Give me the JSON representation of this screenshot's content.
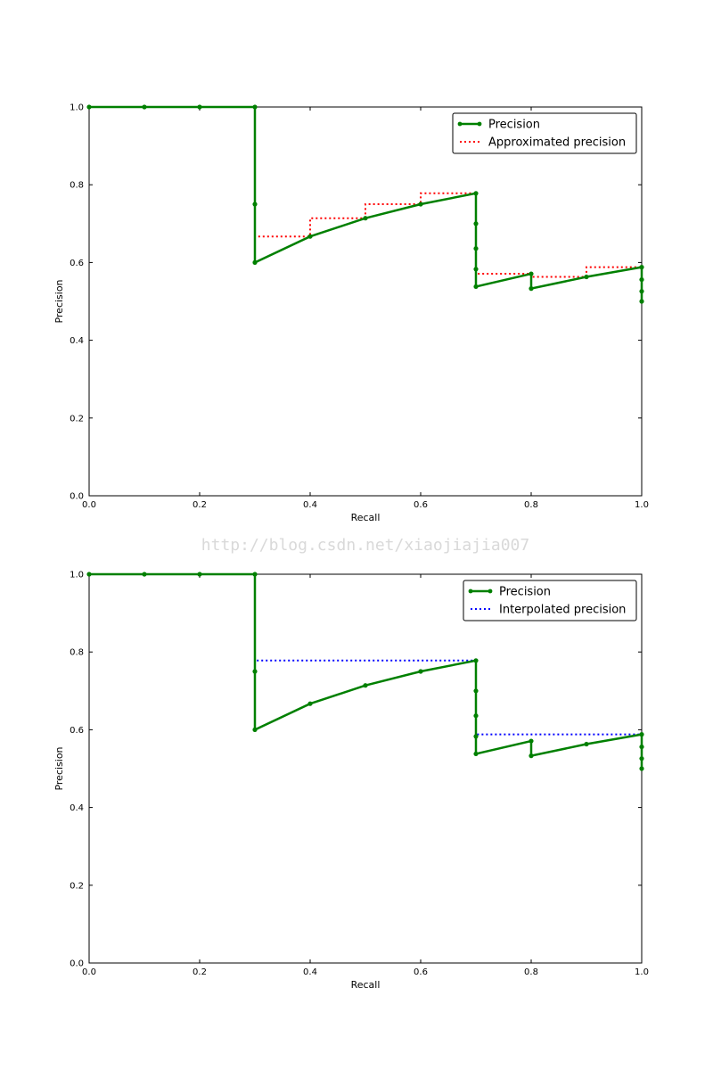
{
  "watermark": "http://blog.csdn.net/xiaojiajia007",
  "colors": {
    "precision": "#008000",
    "approximated": "#ff0000",
    "interpolated": "#0000ff",
    "watermark": "#d9d9d9"
  },
  "chart_data": [
    {
      "type": "line",
      "title": "",
      "xlabel": "Recall",
      "ylabel": "Precision",
      "xlim": [
        0.0,
        1.0
      ],
      "ylim": [
        0.0,
        1.0
      ],
      "xticks": [
        "0.0",
        "0.2",
        "0.4",
        "0.6",
        "0.8",
        "1.0"
      ],
      "yticks": [
        "0.0",
        "0.2",
        "0.4",
        "0.6",
        "0.8",
        "1.0"
      ],
      "grid": false,
      "legend_position": "top-right",
      "series": [
        {
          "name": "Precision",
          "style": "solid-with-markers",
          "color": "#008000",
          "x": [
            0.0,
            0.1,
            0.2,
            0.3,
            0.3,
            0.3,
            0.4,
            0.5,
            0.6,
            0.7,
            0.7,
            0.7,
            0.7,
            0.7,
            0.8,
            0.8,
            0.9,
            1.0,
            1.0,
            1.0,
            1.0
          ],
          "y": [
            1.0,
            1.0,
            1.0,
            1.0,
            0.75,
            0.6,
            0.667,
            0.714,
            0.75,
            0.778,
            0.7,
            0.636,
            0.583,
            0.538,
            0.571,
            0.533,
            0.563,
            0.588,
            0.556,
            0.526,
            0.5
          ]
        },
        {
          "name": "Approximated precision",
          "style": "dotted-step",
          "color": "#ff0000",
          "x": [
            0.0,
            0.3,
            0.3,
            0.4,
            0.4,
            0.5,
            0.5,
            0.6,
            0.6,
            0.7,
            0.7,
            0.8,
            0.8,
            0.9,
            0.9,
            1.0
          ],
          "y": [
            1.0,
            1.0,
            0.667,
            0.667,
            0.714,
            0.714,
            0.75,
            0.75,
            0.778,
            0.778,
            0.571,
            0.571,
            0.563,
            0.563,
            0.588,
            0.588
          ]
        }
      ]
    },
    {
      "type": "line",
      "title": "",
      "xlabel": "Recall",
      "ylabel": "Precision",
      "xlim": [
        0.0,
        1.0
      ],
      "ylim": [
        0.0,
        1.0
      ],
      "xticks": [
        "0.0",
        "0.2",
        "0.4",
        "0.6",
        "0.8",
        "1.0"
      ],
      "yticks": [
        "0.0",
        "0.2",
        "0.4",
        "0.6",
        "0.8",
        "1.0"
      ],
      "grid": false,
      "legend_position": "top-right",
      "series": [
        {
          "name": "Precision",
          "style": "solid-with-markers",
          "color": "#008000",
          "x": [
            0.0,
            0.1,
            0.2,
            0.3,
            0.3,
            0.3,
            0.4,
            0.5,
            0.6,
            0.7,
            0.7,
            0.7,
            0.7,
            0.7,
            0.8,
            0.8,
            0.9,
            1.0,
            1.0,
            1.0,
            1.0
          ],
          "y": [
            1.0,
            1.0,
            1.0,
            1.0,
            0.75,
            0.6,
            0.667,
            0.714,
            0.75,
            0.778,
            0.7,
            0.636,
            0.583,
            0.538,
            0.571,
            0.533,
            0.563,
            0.588,
            0.556,
            0.526,
            0.5
          ]
        },
        {
          "name": "Interpolated precision",
          "style": "dotted-step",
          "color": "#0000ff",
          "x": [
            0.0,
            0.3,
            0.3,
            0.7,
            0.7,
            1.0
          ],
          "y": [
            1.0,
            1.0,
            0.778,
            0.778,
            0.588,
            0.588
          ]
        }
      ]
    }
  ]
}
